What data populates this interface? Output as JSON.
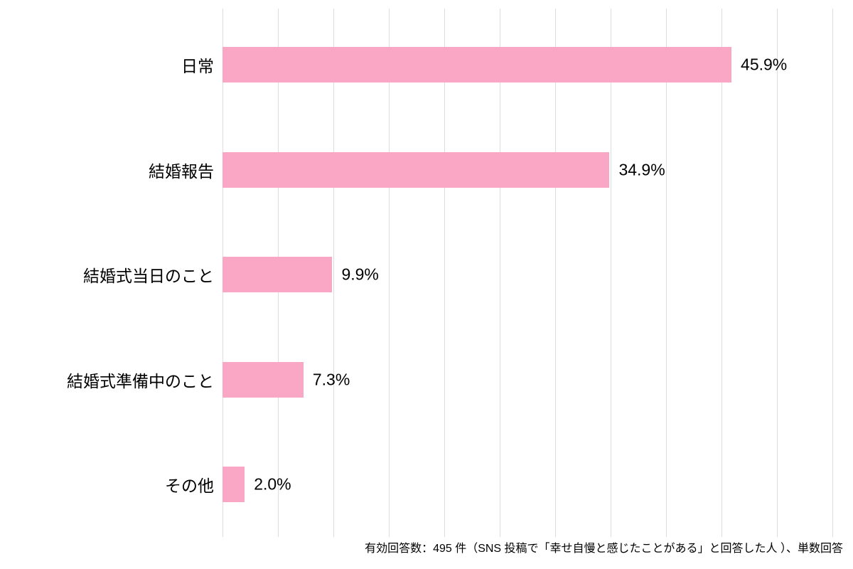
{
  "chart_data": {
    "type": "bar",
    "orientation": "horizontal",
    "title": "",
    "xlabel": "",
    "ylabel": "",
    "categories": [
      "日常",
      "結婚報告",
      "結婚式当日のこと",
      "結婚式準備中のこと",
      "その他"
    ],
    "values": [
      45.9,
      34.9,
      9.9,
      7.3,
      2.0
    ],
    "value_labels": [
      "45.9%",
      "34.9%",
      "9.9%",
      "7.3%",
      "2.0%"
    ],
    "xlim": [
      0,
      55
    ],
    "gridline_step": 5,
    "grid": true,
    "legend": false,
    "bar_color": "#F9A7C5",
    "gridline_color": "#DDDDDD",
    "text_color": "#000000"
  },
  "footer": {
    "note": "有効回答数：495 件（SNS 投稿で「幸せ自慢と感じたことがある」と回答した人 ）、単数回答"
  }
}
